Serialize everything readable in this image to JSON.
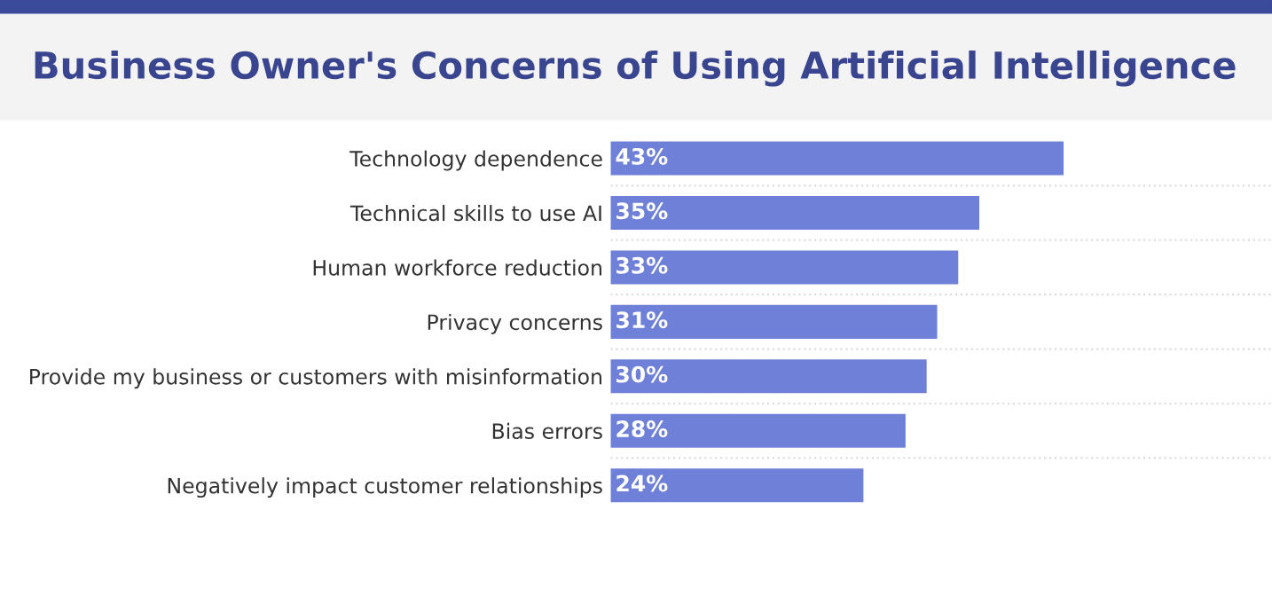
{
  "chart_data": {
    "type": "bar",
    "orientation": "horizontal",
    "title": "Business Owner's Concerns of Using Artificial Intelligence",
    "categories": [
      "Technology dependence",
      "Technical skills to use AI",
      "Human workforce reduction",
      "Privacy concerns",
      "Provide my business or customers with misinformation",
      "Bias errors",
      "Negatively impact customer relationships"
    ],
    "values": [
      43,
      35,
      33,
      31,
      30,
      28,
      24
    ],
    "value_labels": [
      "43%",
      "35%",
      "33%",
      "31%",
      "30%",
      "28%",
      "24%"
    ],
    "color": "#6f80d8",
    "grid": false,
    "legend": false
  }
}
